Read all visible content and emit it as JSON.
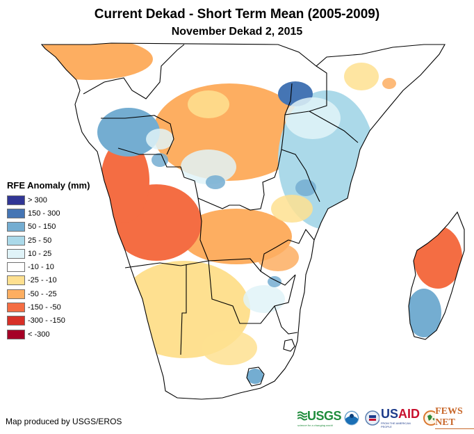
{
  "header": {
    "title": "Current Dekad - Short Term Mean (2005-2009)",
    "subtitle": "November Dekad 2, 2015"
  },
  "legend": {
    "title": "RFE Anomaly (mm)",
    "items": [
      {
        "label": "> 300",
        "color": "#313695"
      },
      {
        "label": "150 - 300",
        "color": "#4575b4"
      },
      {
        "label": "50 - 150",
        "color": "#74add1"
      },
      {
        "label": "25 - 50",
        "color": "#abd9e9"
      },
      {
        "label": "10 - 25",
        "color": "#e0f3f8"
      },
      {
        "label": "-10 - 10",
        "color": "#ffffff"
      },
      {
        "label": "-25 - -10",
        "color": "#fee090"
      },
      {
        "label": "-50 - -25",
        "color": "#fdae61"
      },
      {
        "label": "-150 - -50",
        "color": "#f46d43"
      },
      {
        "label": "-300 - -150",
        "color": "#d73027"
      },
      {
        "label": "< -300",
        "color": "#a50026"
      }
    ]
  },
  "footer": {
    "credit": "Map produced by USGS/EROS",
    "logos": [
      {
        "name": "usgs",
        "text": "USGS",
        "tagline": "science for a changing world"
      },
      {
        "name": "noaa",
        "text": "NOAA"
      },
      {
        "name": "usaid",
        "text_a": "US",
        "text_b": "AID",
        "tagline": "FROM THE AMERICAN PEOPLE"
      },
      {
        "name": "fews-net",
        "text": "FEWS NET"
      }
    ]
  },
  "map": {
    "region": "Central, Eastern and Southern Africa",
    "anomaly_regions": [
      {
        "area": "Gulf of Guinea / Cameroon coast",
        "class": "-50 - -25"
      },
      {
        "area": "Gabon / Congo",
        "class": "50 - 150"
      },
      {
        "area": "Angola coast",
        "class": "-150 - -50"
      },
      {
        "area": "Central Angola",
        "class": "-150 - -50"
      },
      {
        "area": "Central DRC",
        "class": "-50 - -25"
      },
      {
        "area": "Uganda / Lake Victoria",
        "class": "150 - 300"
      },
      {
        "area": "Kenya / Tanzania",
        "class": "25 - 50"
      },
      {
        "area": "Zambia",
        "class": "-50 - -25"
      },
      {
        "area": "Namibia / Botswana",
        "class": "-25 - -10"
      },
      {
        "area": "South Africa interior",
        "class": "-10 - 10"
      },
      {
        "area": "Lesotho",
        "class": "50 - 150"
      },
      {
        "area": "Northern Madagascar",
        "class": "-150 - -50"
      },
      {
        "area": "Southern Madagascar",
        "class": "50 - 150"
      }
    ]
  }
}
